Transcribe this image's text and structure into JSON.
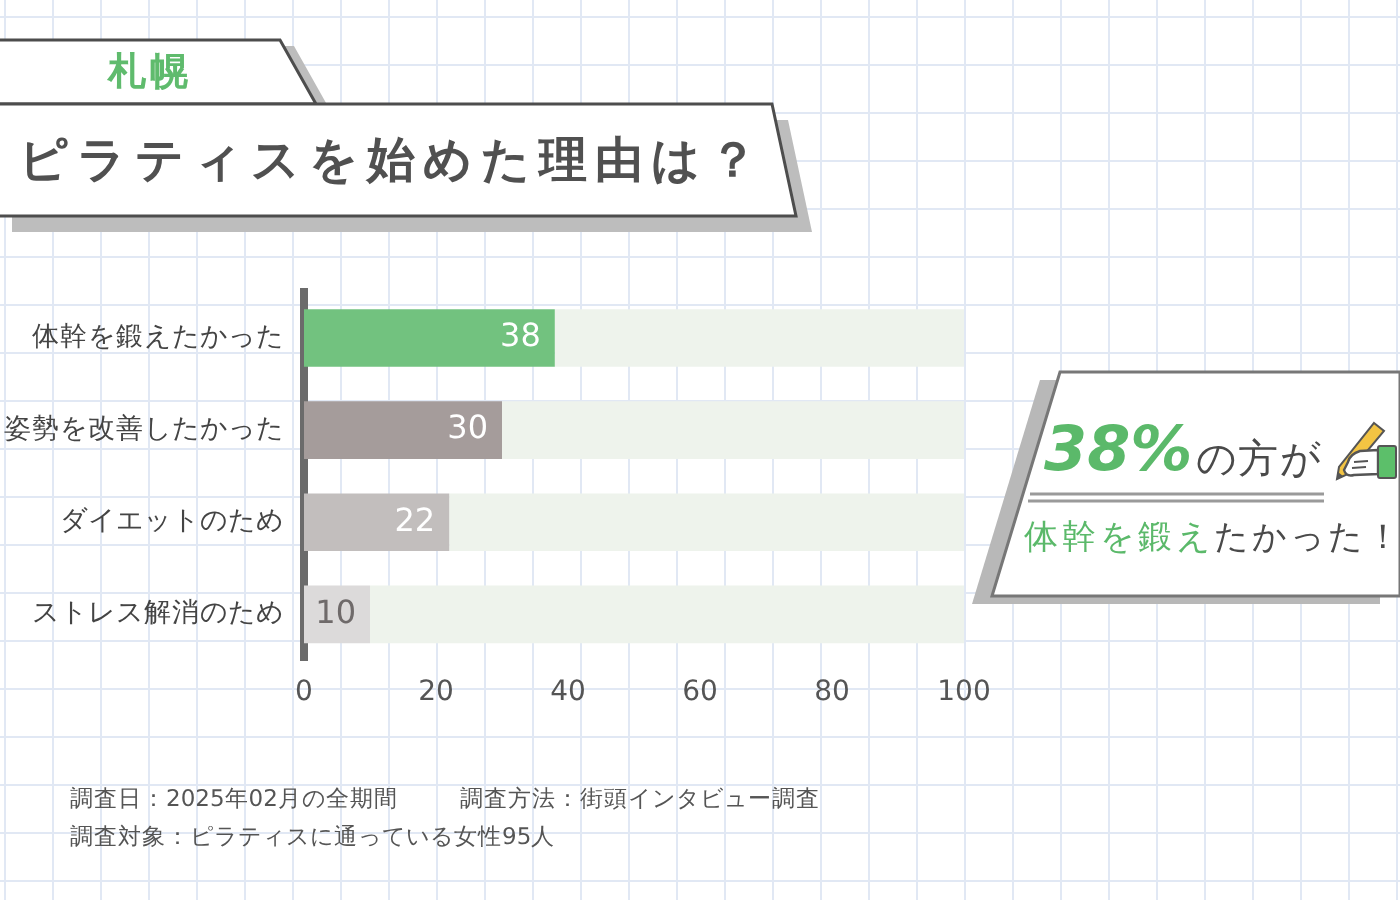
{
  "chart_data": {
    "type": "bar",
    "orientation": "horizontal",
    "stacked": true,
    "title": "ピラティスを始めた理由は？",
    "subtitle": "札幌",
    "categories": [
      "体幹を鍛えたかった",
      "姿勢を改善したかった",
      "ダイエットのため",
      "ストレス解消のため"
    ],
    "series": [
      {
        "colors": [
          "#72c27f",
          "#a59c9b",
          "#c2bebd",
          "#dcdada"
        ],
        "values": [
          38,
          30,
          22,
          10
        ],
        "value_labels": [
          "38",
          "30",
          "22",
          "10"
        ]
      },
      {
        "color": "#eef3ec",
        "values": [
          62,
          70,
          78,
          90
        ]
      }
    ],
    "xlim": [
      0,
      100
    ],
    "xticks": [
      0,
      20,
      40,
      60,
      80,
      100
    ],
    "annotations": [
      "38%",
      "の方が",
      "体幹を鍛え",
      "たかった！",
      "調査日：2025年02月の全期間",
      "調査方法：街頭インタビュー調査",
      "調査対象：ピラティスに通っている女性95人"
    ]
  }
}
